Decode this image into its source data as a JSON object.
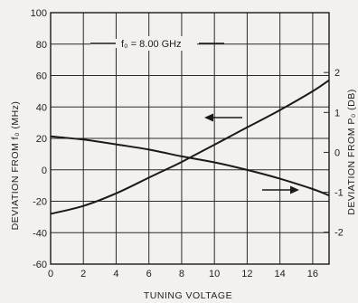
{
  "chart_data": {
    "type": "line",
    "annotation_label": "f₀ = 8.00 GHz",
    "xlabel": "TUNING VOLTAGE",
    "ylabel_left": "DEVIATION FROM f₀ (MHz)",
    "ylabel_right": "DEVIATION FROM P₀ (DB)",
    "xlim": [
      0,
      17
    ],
    "ylim_left": [
      -60,
      100
    ],
    "ylim_right": [
      -2.8,
      3.5
    ],
    "x_ticks": [
      0,
      2,
      4,
      6,
      8,
      10,
      12,
      14,
      16
    ],
    "y_ticks_left": [
      -60,
      -40,
      -20,
      0,
      20,
      40,
      60,
      80,
      100
    ],
    "y_ticks_right": [
      -2,
      -1,
      0,
      1,
      2
    ],
    "grid": true,
    "series": [
      {
        "axis": "left",
        "x": [
          0,
          2,
          4,
          6,
          7,
          8,
          10,
          12,
          14,
          16,
          17
        ],
        "values": [
          -28,
          -23,
          -15,
          -5,
          0,
          5,
          16,
          27,
          38,
          50,
          57
        ]
      },
      {
        "axis": "right",
        "x": [
          0,
          2,
          4,
          6,
          8,
          10,
          12,
          14,
          16,
          17
        ],
        "values": [
          0.4,
          0.32,
          0.2,
          0.07,
          -0.1,
          -0.25,
          -0.44,
          -0.66,
          -0.92,
          -1.08
        ]
      }
    ]
  }
}
